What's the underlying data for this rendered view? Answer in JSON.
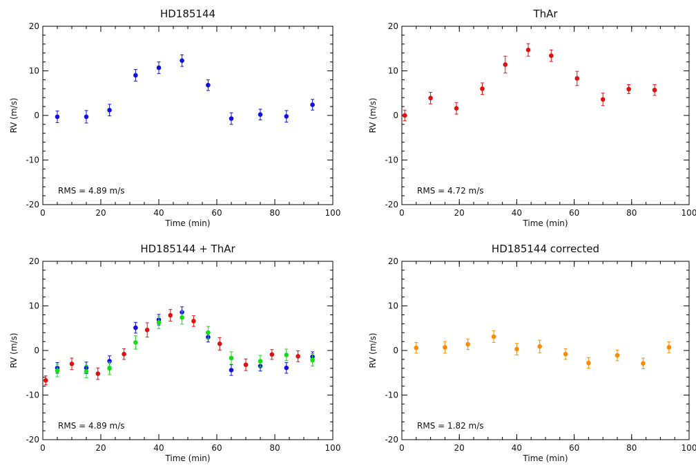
{
  "chart_data": [
    {
      "type": "scatter",
      "title": "HD185144",
      "xlabel": "Time (min)",
      "ylabel": "RV (m/s)",
      "xlim": [
        0,
        100
      ],
      "ylim": [
        -20,
        20
      ],
      "xticks": [
        "0",
        "20",
        "40",
        "60",
        "80",
        "100"
      ],
      "yticks": [
        "20",
        "10",
        "0",
        "-10",
        "-20"
      ],
      "annotation": "RMS = 4.89 m/s",
      "error_bars": true,
      "series": [
        {
          "color": "#1010e0",
          "x": [
            5,
            15,
            23,
            32,
            40,
            48,
            57,
            65,
            75,
            84,
            93
          ],
          "y": [
            -0.3,
            -0.3,
            1.2,
            9.0,
            10.7,
            12.3,
            6.8,
            -0.7,
            0.2,
            -0.2,
            2.4
          ],
          "err": [
            1.3,
            1.4,
            1.3,
            1.3,
            1.3,
            1.3,
            1.2,
            1.3,
            1.2,
            1.3,
            1.2
          ]
        }
      ]
    },
    {
      "type": "scatter",
      "title": "ThAr",
      "xlabel": "Time (min)",
      "ylabel": "RV (m/s)",
      "xlim": [
        0,
        100
      ],
      "ylim": [
        -20,
        20
      ],
      "xticks": [
        "0",
        "20",
        "40",
        "60",
        "80",
        "100"
      ],
      "yticks": [
        "20",
        "10",
        "0",
        "-10",
        "-20"
      ],
      "annotation": "RMS = 4.72 m/s",
      "error_bars": true,
      "series": [
        {
          "color": "#e01010",
          "x": [
            1,
            10,
            19,
            28,
            36,
            44,
            52,
            61,
            70,
            79,
            88
          ],
          "y": [
            0.0,
            3.9,
            1.6,
            6.0,
            11.4,
            14.7,
            13.4,
            8.3,
            3.6,
            5.9,
            5.7
          ],
          "err": [
            1.2,
            1.3,
            1.3,
            1.3,
            1.9,
            1.4,
            1.3,
            1.6,
            1.4,
            1.0,
            1.2
          ]
        }
      ]
    },
    {
      "type": "scatter",
      "title": "HD185144 + ThAr",
      "xlabel": "Time (min)",
      "ylabel": "RV (m/s)",
      "xlim": [
        0,
        100
      ],
      "ylim": [
        -20,
        20
      ],
      "xticks": [
        "0",
        "20",
        "40",
        "60",
        "80",
        "100"
      ],
      "yticks": [
        "20",
        "10",
        "0",
        "-10",
        "-20"
      ],
      "annotation": "RMS = 4.89 m/s",
      "error_bars": true,
      "series": [
        {
          "color": "#e01010",
          "x": [
            1,
            10,
            19,
            28,
            36,
            44,
            52,
            61,
            70,
            79,
            88
          ],
          "y": [
            -6.7,
            -3.0,
            -5.2,
            -0.8,
            4.6,
            7.9,
            6.6,
            1.5,
            -3.2,
            -0.9,
            -1.3
          ],
          "err": [
            1.0,
            1.3,
            1.3,
            1.2,
            1.6,
            1.3,
            1.2,
            1.4,
            1.3,
            1.1,
            1.2
          ]
        },
        {
          "color": "#1010e0",
          "x": [
            5,
            15,
            23,
            32,
            40,
            48,
            57,
            65,
            75,
            84,
            93
          ],
          "y": [
            -3.9,
            -3.9,
            -2.4,
            5.1,
            6.9,
            8.6,
            3.0,
            -4.4,
            -3.5,
            -3.9,
            -1.4
          ],
          "err": [
            1.2,
            1.3,
            1.2,
            1.2,
            1.2,
            1.2,
            1.1,
            1.2,
            1.1,
            1.2,
            1.1
          ]
        },
        {
          "color": "#10e010",
          "x": [
            5,
            15,
            23,
            32,
            40,
            48,
            57,
            65,
            75,
            84,
            93
          ],
          "y": [
            -4.5,
            -4.7,
            -4.0,
            1.8,
            6.3,
            7.4,
            4.0,
            -1.7,
            -2.4,
            -1.0,
            -2.1
          ],
          "err": [
            1.4,
            1.4,
            1.4,
            1.5,
            1.4,
            1.5,
            1.4,
            1.4,
            1.3,
            1.3,
            1.4
          ]
        }
      ]
    },
    {
      "type": "scatter",
      "title": "HD185144 corrected",
      "xlabel": "Time (min)",
      "ylabel": "RV (m/s)",
      "xlim": [
        0,
        100
      ],
      "ylim": [
        -20,
        20
      ],
      "xticks": [
        "0",
        "20",
        "40",
        "60",
        "80",
        "100"
      ],
      "yticks": [
        "20",
        "10",
        "0",
        "-10",
        "-20"
      ],
      "annotation": "RMS = 1.82 m/s",
      "error_bars": true,
      "series": [
        {
          "color": "#ff8c00",
          "x": [
            5,
            15,
            23,
            32,
            40,
            48,
            57,
            65,
            75,
            84,
            93
          ],
          "y": [
            0.6,
            0.7,
            1.4,
            3.1,
            0.3,
            0.9,
            -0.8,
            -2.8,
            -1.1,
            -2.9,
            0.7
          ],
          "err": [
            1.2,
            1.3,
            1.2,
            1.3,
            1.3,
            1.4,
            1.2,
            1.2,
            1.2,
            1.2,
            1.2
          ]
        }
      ]
    }
  ]
}
